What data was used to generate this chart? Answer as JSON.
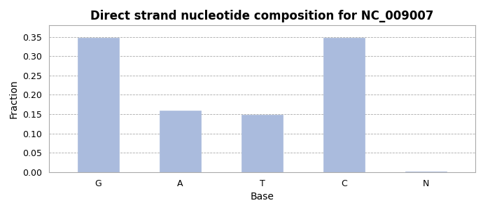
{
  "title": "Direct strand nucleotide composition for NC_009007",
  "categories": [
    "G",
    "A",
    "T",
    "C",
    "N"
  ],
  "values": [
    0.347,
    0.16,
    0.149,
    0.347,
    0.002
  ],
  "bar_color": "#aabbdd",
  "bar_edgecolor": "#aabbdd",
  "xlabel": "Base",
  "ylabel": "Fraction",
  "ylim": [
    0,
    0.38
  ],
  "yticks": [
    0.0,
    0.05,
    0.1,
    0.15,
    0.2,
    0.25,
    0.3,
    0.35
  ],
  "title_fontsize": 12,
  "axis_label_fontsize": 10,
  "tick_fontsize": 9,
  "background_color": "#ffffff",
  "grid_color": "#aaaaaa",
  "spine_color": "#aaaaaa"
}
